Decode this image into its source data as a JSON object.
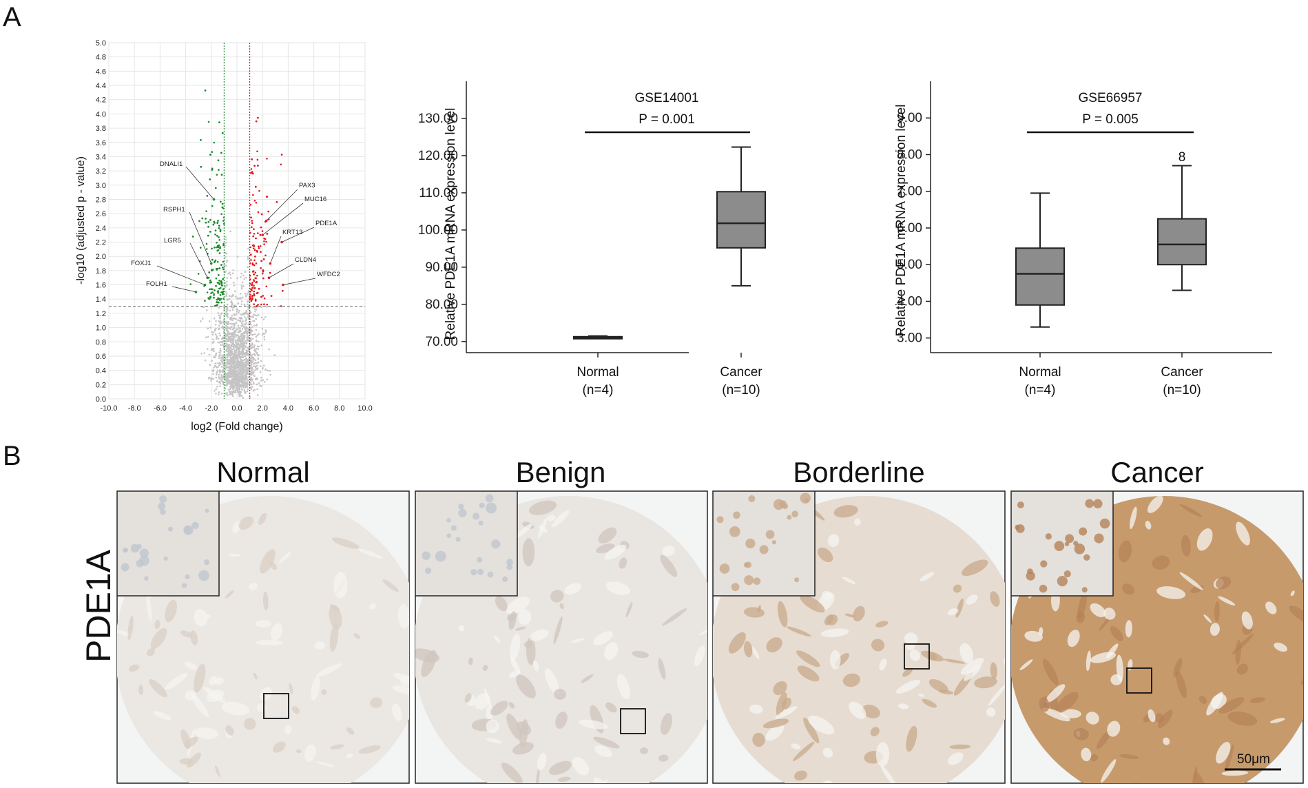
{
  "panels": {
    "a": "A",
    "b": "B"
  },
  "volcano": {
    "xlabel": "log2 (Fold change)",
    "ylabel": "-log10 (adjusted p - value)",
    "x_ticks": [
      "-10.0",
      "-8.0",
      "-6.0",
      "-4.0",
      "-2.0",
      "0.0",
      "2.0",
      "4.0",
      "6.0",
      "8.0",
      "10.0"
    ],
    "y_ticks": [
      "0.0",
      "0.2",
      "0.4",
      "0.6",
      "0.8",
      "1.0",
      "1.2",
      "1.4",
      "1.6",
      "1.8",
      "2.0",
      "2.2",
      "2.4",
      "2.6",
      "2.8",
      "3.0",
      "3.2",
      "3.4",
      "3.6",
      "3.8",
      "4.0",
      "4.2",
      "4.4",
      "4.6",
      "4.8",
      "5.0"
    ],
    "genes": [
      "DNALI1",
      "RSPH1",
      "LGR5",
      "FOXJ1",
      "FOLH1",
      "PAX3",
      "MUC16",
      "PDE1A",
      "KRT13",
      "CLDN4",
      "WFDC2"
    ],
    "colors": {
      "down": "#1f8a2e",
      "up": "#e0191d",
      "ns": "#c4c4c4",
      "highlight": "#e0191d"
    }
  },
  "box1": {
    "title": "GSE14001",
    "pvalue": "P = 0.001",
    "ylabel": "Relative PDE1A mRNA expression level",
    "y_ticks": [
      "70.00",
      "80.00",
      "90.00",
      "100.00",
      "110.00",
      "120.00",
      "130.00"
    ],
    "groups": [
      {
        "name": "Normal",
        "n": "(n=4)"
      },
      {
        "name": "Cancer",
        "n": "(n=10)"
      }
    ]
  },
  "box2": {
    "title": "GSE66957",
    "pvalue": "P = 0.005",
    "ylabel": "Relative PDE1A mRNA expression level",
    "y_ticks": [
      "3.00",
      "4.00",
      "5.00",
      "6.00",
      "7.00",
      "8.00",
      "9.00"
    ],
    "outlier_label": "8",
    "groups": [
      {
        "name": "Normal",
        "n": "(n=4)"
      },
      {
        "name": "Cancer",
        "n": "(n=10)"
      }
    ]
  },
  "ihc": {
    "row_label": "PDE1A",
    "columns": [
      "Normal",
      "Benign",
      "Borderline",
      "Cancer"
    ],
    "scale_bar": "50μm"
  },
  "chart_data": [
    {
      "type": "scatter",
      "xlabel": "log2 (Fold change)",
      "ylabel": "-log10 (adjusted p - value)",
      "xlim": [
        -10,
        10
      ],
      "ylim": [
        0,
        5
      ],
      "thresholds": {
        "x": [
          -1,
          1
        ],
        "y": 1.3
      },
      "labeled_points": [
        {
          "gene": "DNALI1",
          "x": -1.8,
          "y": 2.8,
          "group": "down"
        },
        {
          "gene": "RSPH1",
          "x": -2.0,
          "y": 1.9,
          "group": "down"
        },
        {
          "gene": "LGR5",
          "x": -2.3,
          "y": 1.7,
          "group": "down"
        },
        {
          "gene": "FOXJ1",
          "x": -2.5,
          "y": 1.6,
          "group": "down"
        },
        {
          "gene": "FOLH1",
          "x": -3.2,
          "y": 1.5,
          "group": "down"
        },
        {
          "gene": "PAX3",
          "x": 2.3,
          "y": 2.5,
          "group": "up"
        },
        {
          "gene": "MUC16",
          "x": 2.0,
          "y": 2.3,
          "group": "up"
        },
        {
          "gene": "PDE1A",
          "x": 3.5,
          "y": 2.2,
          "group": "up"
        },
        {
          "gene": "KRT13",
          "x": 2.6,
          "y": 1.9,
          "group": "up"
        },
        {
          "gene": "CLDN4",
          "x": 2.5,
          "y": 1.7,
          "group": "up"
        },
        {
          "gene": "WFDC2",
          "x": 3.6,
          "y": 1.6,
          "group": "up"
        }
      ]
    },
    {
      "type": "box",
      "title": "GSE14001",
      "annotation": "P = 0.001",
      "ylabel": "Relative PDE1A mRNA expression level",
      "ylim": [
        67,
        140
      ],
      "categories": [
        "Normal (n=4)",
        "Cancer (n=10)"
      ],
      "boxes": [
        {
          "min": 70.8,
          "q1": 70.8,
          "median": 71.0,
          "q3": 71.3,
          "max": 71.5
        },
        {
          "min": 85.0,
          "q1": 95.2,
          "median": 101.8,
          "q3": 110.3,
          "max": 122.3
        }
      ]
    },
    {
      "type": "box",
      "title": "GSE66957",
      "annotation": "P = 0.005",
      "ylabel": "Relative PDE1A mRNA expression level",
      "ylim": [
        2.6,
        10.0
      ],
      "categories": [
        "Normal (n=4)",
        "Cancer (n=10)"
      ],
      "boxes": [
        {
          "min": 3.3,
          "q1": 3.9,
          "median": 4.75,
          "q3": 5.45,
          "max": 6.95
        },
        {
          "min": 4.3,
          "q1": 5.0,
          "median": 5.55,
          "q3": 6.25,
          "max": 7.7
        }
      ],
      "outliers": [
        {
          "group": 1,
          "label": "8"
        }
      ]
    }
  ]
}
